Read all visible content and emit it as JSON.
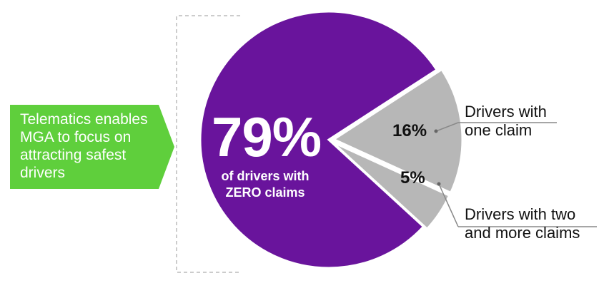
{
  "callout": {
    "text": "Telematics enables MGA to focus on attracting safest drivers",
    "color": "#5fcf3c"
  },
  "chart_data": {
    "type": "pie",
    "slices": [
      {
        "value": 79,
        "label": "79%",
        "caption": "of drivers with ZERO claims",
        "color": "#69149c"
      },
      {
        "value": 16,
        "label": "16%",
        "name": "Drivers with one claim",
        "color": "#b7b7b7"
      },
      {
        "value": 5,
        "label": "5%",
        "name": "Drivers with two and more claims",
        "color": "#b7b7b7"
      }
    ]
  }
}
